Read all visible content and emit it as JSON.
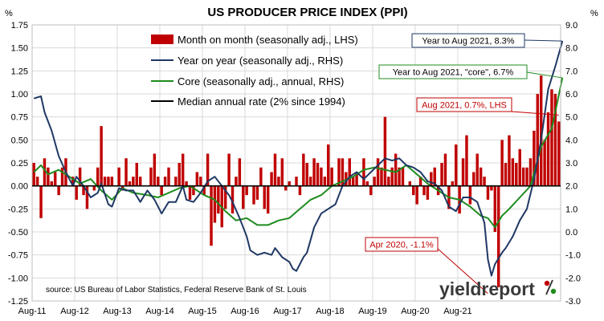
{
  "chart_data": {
    "type": "bar+line",
    "title": "US PRODUCER PRICE INDEX (PPI)",
    "left_unit": "%",
    "right_unit": "%",
    "left_axis": {
      "min": -1.25,
      "max": 1.75,
      "step": 0.25,
      "ticks": [
        "-1.25",
        "-1.00",
        "-0.75",
        "-0.50",
        "-0.25",
        "0.00",
        "0.25",
        "0.50",
        "0.75",
        "1.00",
        "1.25",
        "1.50",
        "1.75"
      ]
    },
    "right_axis": {
      "min": -3.0,
      "max": 9.0,
      "step": 1.0,
      "ticks": [
        "-3.0",
        "-2.0",
        "-1.0",
        "0.0",
        "1.0",
        "2.0",
        "3.0",
        "4.0",
        "5.0",
        "6.0",
        "7.0",
        "8.0",
        "9.0"
      ]
    },
    "x_labels": [
      "Aug-11",
      "Aug-12",
      "Aug-13",
      "Aug-14",
      "Aug-15",
      "Aug-16",
      "Aug-17",
      "Aug-18",
      "Aug-19",
      "Aug-20",
      "Aug-21"
    ],
    "x_months": {
      "start": "2011-08",
      "end": "2021-08"
    },
    "legend": [
      {
        "label": "Month on month (seasonally adj., LHS)",
        "color": "#c00000",
        "kind": "bar"
      },
      {
        "label": "Year on year (seasonally adj., RHS)",
        "color": "#1f3864",
        "kind": "line"
      },
      {
        "label": "Core (seasonally adj., annual, RHS)",
        "color": "#1e8c1e",
        "kind": "line"
      },
      {
        "label": "Median annual rate (2% since 1994)",
        "color": "#000000",
        "kind": "line"
      }
    ],
    "median_rate": 2.0,
    "series": [
      {
        "name": "Month on month (seasonally adj., LHS)",
        "axis": "left",
        "values": [
          0.25,
          0.1,
          -0.35,
          0.3,
          0.2,
          0.05,
          0.15,
          -0.1,
          0.2,
          0.3,
          0.0,
          0.1,
          -0.15,
          0.2,
          -0.1,
          -0.25,
          0.0,
          -0.05,
          0.2,
          0.65,
          0.1,
          0.1,
          0.1,
          0.0,
          0.2,
          -0.05,
          0.3,
          0.05,
          0.1,
          0.25,
          0.1,
          0.0,
          0.0,
          0.2,
          0.35,
          0.1,
          -0.1,
          0.1,
          0.2,
          0.0,
          0.1,
          0.25,
          0.35,
          0.05,
          -0.15,
          -0.1,
          0.15,
          0.1,
          -0.1,
          0.35,
          -0.65,
          -0.4,
          -0.3,
          -0.45,
          -0.25,
          0.35,
          -0.3,
          0.1,
          0.3,
          -0.25,
          -0.1,
          0.0,
          -0.2,
          -0.15,
          0.2,
          -0.25,
          -0.3,
          0.15,
          0.35,
          0.1,
          0.3,
          -0.05,
          0.05,
          0.0,
          0.1,
          -0.1,
          0.35,
          0.25,
          0.1,
          0.3,
          0.25,
          0.2,
          0.1,
          0.45,
          0.2,
          0.0,
          0.3,
          0.3,
          0.15,
          0.3,
          0.1,
          0.15,
          0.0,
          0.3,
          0.05,
          -0.1,
          0.1,
          0.3,
          0.2,
          0.75,
          0.1,
          0.2,
          0.35,
          0.2,
          0.2,
          0.0,
          0.05,
          -0.1,
          -0.2,
          0.1,
          -0.1,
          -0.15,
          0.15,
          0.2,
          -0.1,
          0.25,
          0.35,
          -0.25,
          0.05,
          0.45,
          -0.3,
          0.3,
          0.55,
          -0.2,
          0.15,
          0.35,
          0.2,
          0.1,
          -0.15,
          -0.05,
          -0.5,
          -1.1,
          0.5,
          0.25,
          0.55,
          0.3,
          0.25,
          0.4,
          0.2,
          0.2,
          0.3,
          0.6,
          1.0,
          1.2,
          0.5,
          0.8,
          1.05,
          1.0,
          0.7
        ]
      },
      {
        "name": "Year on year (seasonally adj., RHS)",
        "axis": "right",
        "points": [
          [
            0,
            5.8
          ],
          [
            2,
            5.9
          ],
          [
            3,
            5.2
          ],
          [
            5,
            4.4
          ],
          [
            7,
            3.3
          ],
          [
            9,
            2.6
          ],
          [
            11,
            2.0
          ],
          [
            12,
            2.4
          ],
          [
            14,
            2.0
          ],
          [
            16,
            1.5
          ],
          [
            18,
            1.7
          ],
          [
            19,
            2.1
          ],
          [
            21,
            1.2
          ],
          [
            22,
            1.1
          ],
          [
            24,
            1.9
          ],
          [
            26,
            1.8
          ],
          [
            28,
            1.8
          ],
          [
            30,
            1.3
          ],
          [
            32,
            1.8
          ],
          [
            34,
            1.4
          ],
          [
            36,
            0.8
          ],
          [
            38,
            1.3
          ],
          [
            40,
            1.3
          ],
          [
            42,
            2.0
          ],
          [
            43,
            1.4
          ],
          [
            45,
            1.3
          ],
          [
            47,
            1.7
          ],
          [
            49,
            2.2
          ],
          [
            51,
            2.4
          ],
          [
            53,
            2.0
          ],
          [
            55,
            1.6
          ],
          [
            56,
            1.3
          ],
          [
            58,
            0.6
          ],
          [
            60,
            -0.2
          ],
          [
            61,
            -0.8
          ],
          [
            63,
            -1.0
          ],
          [
            65,
            -0.9
          ],
          [
            67,
            -1.0
          ],
          [
            68,
            -0.7
          ],
          [
            70,
            -1.1
          ],
          [
            72,
            -1.3
          ],
          [
            73,
            -1.6
          ],
          [
            74,
            -1.7
          ],
          [
            76,
            -1.1
          ],
          [
            77,
            -0.9
          ],
          [
            79,
            0.2
          ],
          [
            81,
            0.8
          ],
          [
            83,
            1.0
          ],
          [
            85,
            1.2
          ],
          [
            87,
            2.0
          ],
          [
            89,
            2.4
          ],
          [
            91,
            2.6
          ],
          [
            93,
            2.3
          ],
          [
            95,
            2.6
          ],
          [
            97,
            2.9
          ],
          [
            99,
            3.2
          ],
          [
            101,
            3.1
          ],
          [
            103,
            3.2
          ],
          [
            105,
            2.9
          ],
          [
            107,
            2.8
          ],
          [
            109,
            2.6
          ],
          [
            111,
            2.2
          ],
          [
            113,
            2.1
          ],
          [
            115,
            1.8
          ],
          [
            117,
            1.1
          ],
          [
            119,
            0.9
          ],
          [
            121,
            1.5
          ],
          [
            123,
            1.5
          ],
          [
            125,
            1.3
          ],
          [
            127,
            0.4
          ],
          [
            128,
            -1.2
          ],
          [
            129,
            -1.9
          ],
          [
            130,
            -1.4
          ],
          [
            132,
            -0.9
          ],
          [
            133,
            -0.7
          ],
          [
            135,
            -0.2
          ],
          [
            137,
            0.5
          ],
          [
            139,
            1.0
          ],
          [
            141,
            2.3
          ],
          [
            143,
            4.0
          ],
          [
            145,
            6.2
          ],
          [
            147,
            7.2
          ],
          [
            149,
            8.3
          ]
        ]
      },
      {
        "name": "Core (seasonally adj., annual, RHS)",
        "axis": "right",
        "points": [
          [
            0,
            2.6
          ],
          [
            2,
            2.9
          ],
          [
            4,
            2.5
          ],
          [
            7,
            2.7
          ],
          [
            10,
            2.4
          ],
          [
            13,
            2.1
          ],
          [
            16,
            2.3
          ],
          [
            19,
            1.8
          ],
          [
            22,
            1.4
          ],
          [
            25,
            1.9
          ],
          [
            28,
            1.7
          ],
          [
            32,
            1.6
          ],
          [
            35,
            1.5
          ],
          [
            38,
            1.7
          ],
          [
            41,
            1.9
          ],
          [
            44,
            2.0
          ],
          [
            48,
            1.6
          ],
          [
            51,
            1.4
          ],
          [
            54,
            0.9
          ],
          [
            57,
            0.5
          ],
          [
            60,
            0.6
          ],
          [
            63,
            0.3
          ],
          [
            66,
            0.3
          ],
          [
            69,
            0.5
          ],
          [
            72,
            0.6
          ],
          [
            75,
            1.0
          ],
          [
            78,
            1.4
          ],
          [
            81,
            1.6
          ],
          [
            84,
            2.0
          ],
          [
            87,
            2.2
          ],
          [
            90,
            2.4
          ],
          [
            93,
            2.7
          ],
          [
            96,
            2.8
          ],
          [
            99,
            2.7
          ],
          [
            102,
            2.6
          ],
          [
            105,
            2.9
          ],
          [
            108,
            2.5
          ],
          [
            111,
            2.1
          ],
          [
            114,
            1.8
          ],
          [
            117,
            1.5
          ],
          [
            120,
            1.4
          ],
          [
            123,
            1.1
          ],
          [
            126,
            0.7
          ],
          [
            128,
            0.6
          ],
          [
            130,
            0.2
          ],
          [
            132,
            0.7
          ],
          [
            134,
            1.0
          ],
          [
            137,
            1.5
          ],
          [
            140,
            2.0
          ],
          [
            143,
            3.7
          ],
          [
            146,
            4.5
          ],
          [
            149,
            6.7
          ]
        ]
      }
    ],
    "annotations": [
      {
        "text": "Year to Aug 2021, 8.3%",
        "color": "#1f3864"
      },
      {
        "text": "Year to Aug 2021, \"core\", 6.7%",
        "color": "#1e8c1e"
      },
      {
        "text": "Aug 2021, 0.7%, LHS",
        "color": "#c00000"
      },
      {
        "text": "Apr 2020, -1.1%",
        "color": "#c00000"
      }
    ],
    "source": "source: US Bureau of Labor Statistics, Federal Reserve Bank of St. Louis",
    "logo": {
      "text": "yieldreport"
    }
  }
}
